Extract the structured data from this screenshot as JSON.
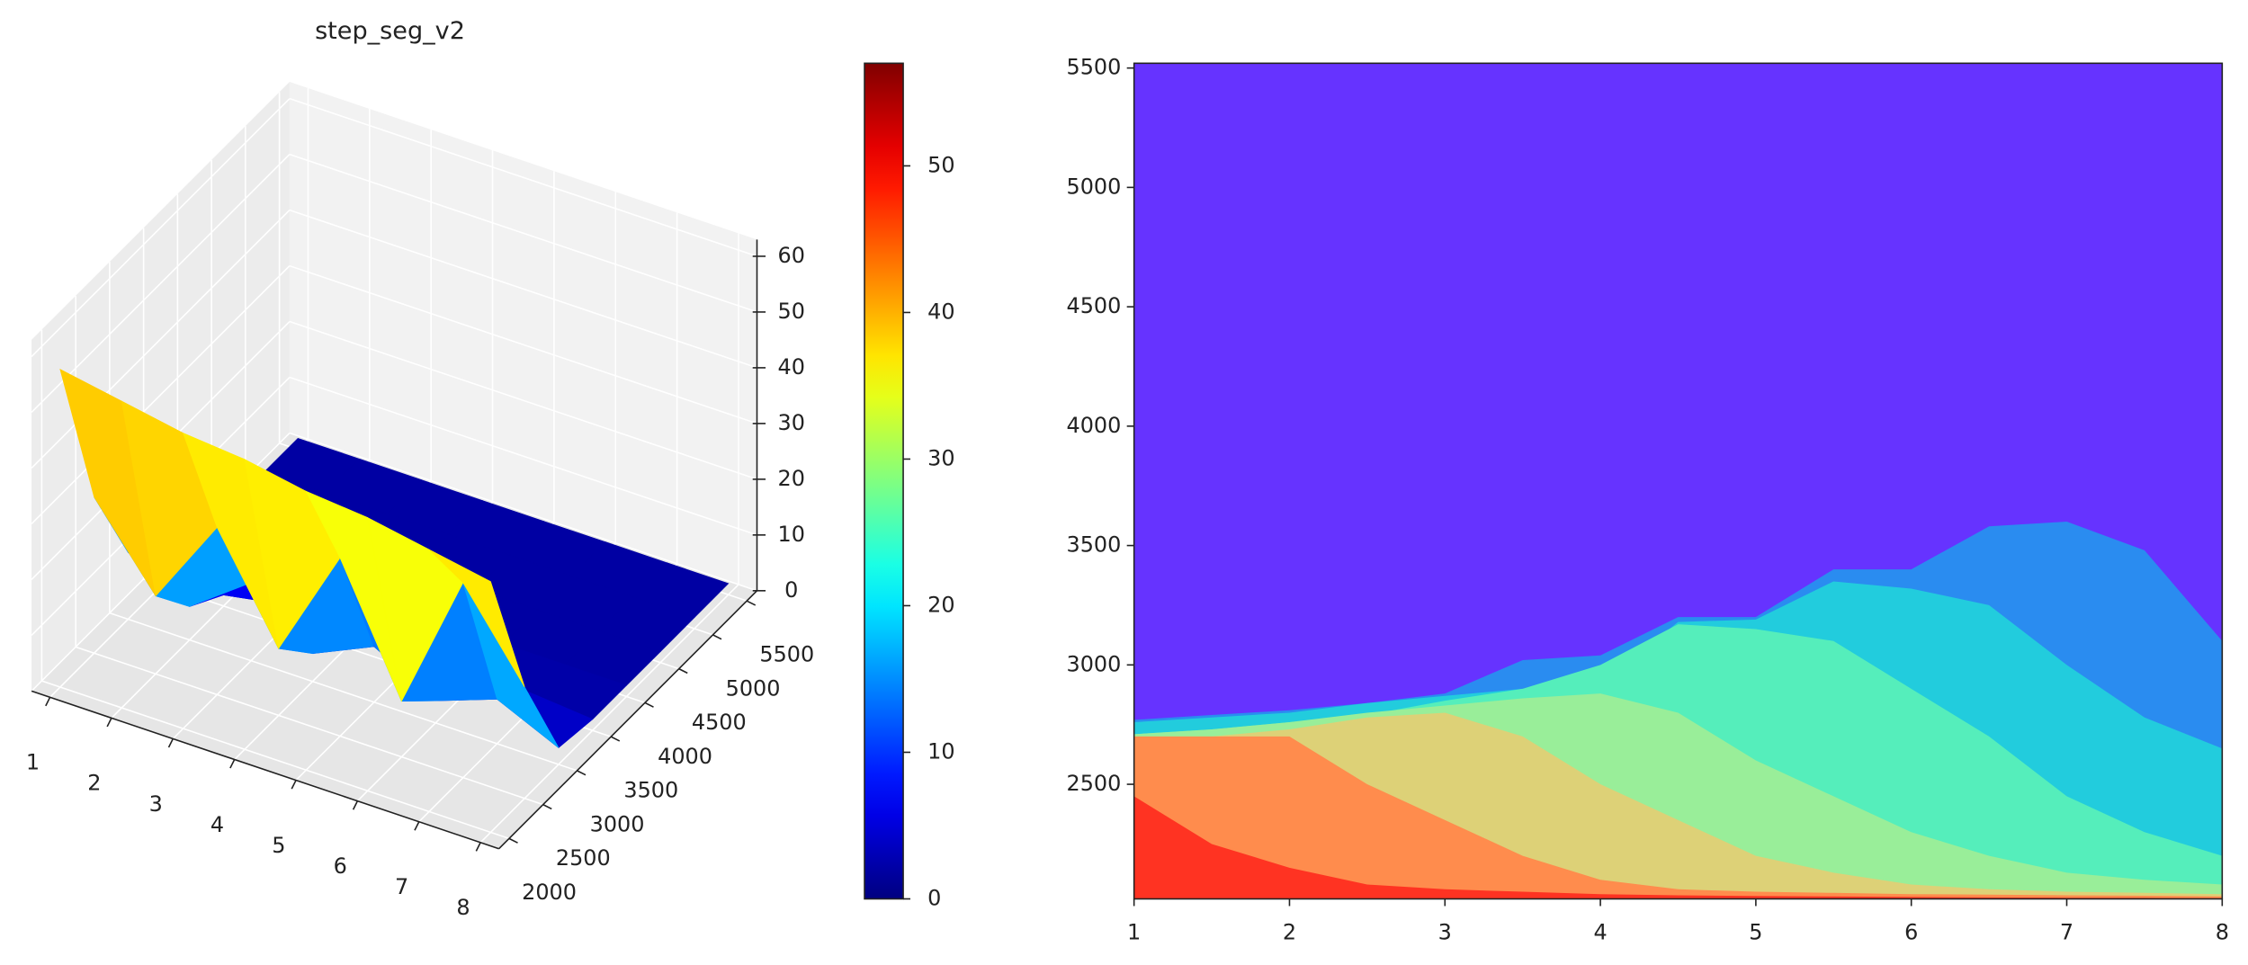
{
  "chart_data": [
    {
      "type": "surface3d",
      "title": "step_seg_v2",
      "colormap": "jet",
      "x": [
        1,
        2,
        3,
        4,
        5,
        6,
        7,
        8
      ],
      "y": [
        2000,
        2500,
        3000,
        3500,
        4000,
        4500,
        5000,
        5500
      ],
      "z": [
        [
          57,
          55,
          53,
          52,
          50,
          49,
          47,
          45
        ],
        [
          28,
          14,
          30,
          12,
          32,
          10,
          35,
          20
        ],
        [
          12,
          6,
          14,
          5,
          10,
          4,
          8,
          3
        ],
        [
          3,
          2,
          4,
          2,
          3,
          2,
          3,
          2
        ],
        [
          2,
          2,
          2,
          2,
          2,
          2,
          2,
          2
        ],
        [
          2,
          2,
          2,
          2,
          2,
          2,
          2,
          2
        ],
        [
          2,
          2,
          2,
          2,
          2,
          2,
          2,
          2
        ],
        [
          2,
          2,
          2,
          2,
          2,
          2,
          2,
          2
        ]
      ],
      "xlim": [
        0.7,
        8.3
      ],
      "ylim": [
        1850,
        5650
      ],
      "zlim": [
        0,
        63
      ],
      "xticks": [
        1,
        2,
        3,
        4,
        5,
        6,
        7,
        8
      ],
      "yticks": [
        2000,
        2500,
        3000,
        3500,
        4000,
        4500,
        5000,
        5500
      ],
      "zticks": [
        0,
        10,
        20,
        30,
        40,
        50,
        60
      ],
      "grid": true
    },
    {
      "type": "colorbar",
      "colormap": "jet",
      "ylim": [
        0,
        57
      ],
      "yticks": [
        0,
        10,
        20,
        30,
        40,
        50
      ]
    },
    {
      "type": "regions",
      "background": "#6633ff",
      "x": [
        1,
        1.5,
        2,
        2.5,
        3,
        3.5,
        4,
        4.5,
        5,
        5.5,
        6,
        6.5,
        7,
        7.5,
        8
      ],
      "series": [
        {
          "color": "#2a8cf0",
          "values": [
            2770,
            2790,
            2810,
            2840,
            2880,
            3020,
            3040,
            3200,
            3200,
            3400,
            3400,
            3580,
            3600,
            3480,
            3100
          ]
        },
        {
          "color": "#22ccdd",
          "values": [
            2760,
            2780,
            2800,
            2840,
            2870,
            2900,
            2920,
            3180,
            3190,
            3350,
            3320,
            3250,
            3000,
            2780,
            2650
          ]
        },
        {
          "color": "#55eebb",
          "values": [
            2710,
            2730,
            2760,
            2790,
            2850,
            2900,
            3000,
            3170,
            3150,
            3100,
            2900,
            2700,
            2450,
            2300,
            2200
          ]
        },
        {
          "color": "#99ee99",
          "values": [
            2710,
            2730,
            2760,
            2800,
            2830,
            2860,
            2880,
            2800,
            2600,
            2450,
            2300,
            2200,
            2130,
            2100,
            2080
          ]
        },
        {
          "color": "#ddd177",
          "values": [
            2700,
            2700,
            2730,
            2780,
            2800,
            2700,
            2500,
            2350,
            2200,
            2130,
            2080,
            2060,
            2050,
            2045,
            2040
          ]
        },
        {
          "color": "#ff8c4d",
          "values": [
            2700,
            2700,
            2700,
            2500,
            2350,
            2200,
            2100,
            2060,
            2050,
            2045,
            2040,
            2038,
            2035,
            2033,
            2030
          ]
        },
        {
          "color": "#ff3322",
          "values": [
            2450,
            2250,
            2150,
            2080,
            2060,
            2050,
            2040,
            2035,
            2032,
            2030,
            2028,
            2026,
            2025,
            2024,
            2022
          ]
        }
      ],
      "xlim": [
        1,
        8
      ],
      "ylim": [
        2020,
        5520
      ],
      "xticks": [
        1,
        2,
        3,
        4,
        5,
        6,
        7,
        8
      ],
      "yticks": [
        2500,
        3000,
        3500,
        4000,
        4500,
        5000,
        5500
      ]
    }
  ]
}
